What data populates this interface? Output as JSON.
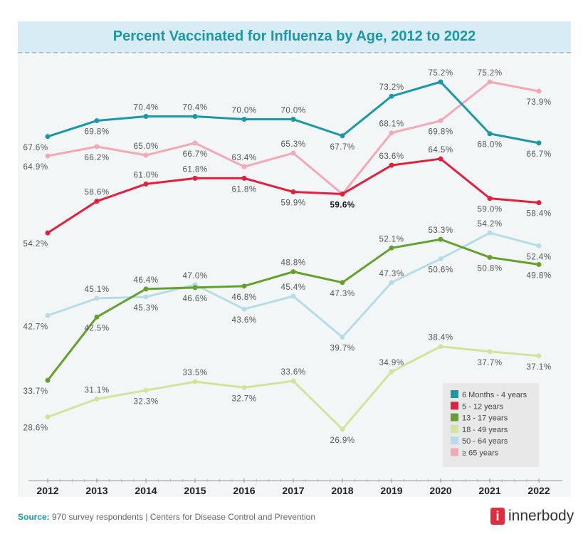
{
  "chart_data": {
    "type": "line",
    "title": "Percent Vaccinated for Influenza by Age, 2012 to 2022",
    "x": [
      "2012",
      "2013",
      "2014",
      "2015",
      "2016",
      "2017",
      "2018",
      "2019",
      "2020",
      "2021",
      "2022"
    ],
    "ylim": [
      20,
      79
    ],
    "value_suffix": "%",
    "grid": false,
    "legend_position": "bottom-right",
    "series": [
      {
        "name": "6 Months - 4 years",
        "color": "#1a98a6",
        "values": [
          67.6,
          69.8,
          70.4,
          70.4,
          70.0,
          70.0,
          67.7,
          73.2,
          75.2,
          68.0,
          66.7
        ]
      },
      {
        "name": "5 - 12 years",
        "color": "#e0203c",
        "values": [
          54.2,
          58.6,
          61.0,
          61.8,
          61.8,
          59.9,
          59.6,
          63.6,
          64.5,
          59.0,
          58.4
        ]
      },
      {
        "name": "13 - 17 years",
        "color": "#64a02b",
        "values": [
          33.7,
          42.5,
          46.4,
          46.6,
          46.8,
          48.8,
          47.3,
          52.1,
          53.3,
          50.8,
          49.8
        ]
      },
      {
        "name": "18 - 49 years",
        "color": "#d4e39a",
        "values": [
          28.6,
          31.1,
          32.3,
          33.5,
          32.7,
          33.6,
          26.9,
          34.9,
          38.4,
          37.7,
          37.1
        ]
      },
      {
        "name": "50 - 64 years",
        "color": "#b6dde6",
        "values": [
          42.7,
          45.1,
          45.3,
          47.0,
          43.6,
          45.4,
          39.7,
          47.3,
          50.6,
          54.2,
          52.4
        ]
      },
      {
        "name": "≥ 65 years",
        "color": "#f2a8b6",
        "values": [
          64.9,
          66.2,
          65.0,
          66.7,
          63.4,
          65.3,
          59.6,
          68.1,
          69.8,
          75.2,
          73.9
        ]
      }
    ]
  },
  "footer": {
    "source_label": "Source:",
    "source_text": " 970 survey respondents | Centers for Disease Control and Prevention"
  },
  "logo": {
    "mark": "i",
    "text": "innerbody"
  }
}
